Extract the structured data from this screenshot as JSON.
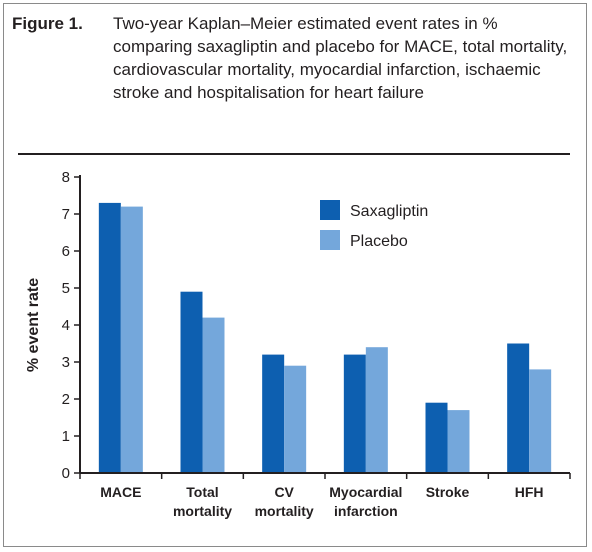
{
  "caption": {
    "label": "Figure 1.",
    "text": "Two-year Kaplan–Meier estimated event rates in % comparing saxagliptin and placebo for MACE, total mortality, cardiovascular mortality, myocardial infarction, ischaemic stroke and hospitalisation for heart failure"
  },
  "colors": {
    "saxagliptin": "#0d5fb0",
    "placebo": "#74a7db",
    "axis": "#231f20"
  },
  "chart_data": {
    "type": "bar",
    "title": "",
    "xlabel": "",
    "ylabel": "% event rate",
    "ylim": [
      0,
      8
    ],
    "yticks": [
      0,
      1,
      2,
      3,
      4,
      5,
      6,
      7,
      8
    ],
    "legend_position": "top-right",
    "grid": false,
    "categories": [
      [
        "MACE"
      ],
      [
        "Total",
        "mortality"
      ],
      [
        "CV",
        "mortality"
      ],
      [
        "Myocardial",
        "infarction"
      ],
      [
        "Stroke"
      ],
      [
        "HFH"
      ]
    ],
    "series": [
      {
        "name": "Saxagliptin",
        "color": "#0d5fb0",
        "values": [
          7.3,
          4.9,
          3.2,
          3.2,
          1.9,
          3.5
        ]
      },
      {
        "name": "Placebo",
        "color": "#74a7db",
        "values": [
          7.2,
          4.2,
          2.9,
          3.4,
          1.7,
          2.8
        ]
      }
    ]
  }
}
